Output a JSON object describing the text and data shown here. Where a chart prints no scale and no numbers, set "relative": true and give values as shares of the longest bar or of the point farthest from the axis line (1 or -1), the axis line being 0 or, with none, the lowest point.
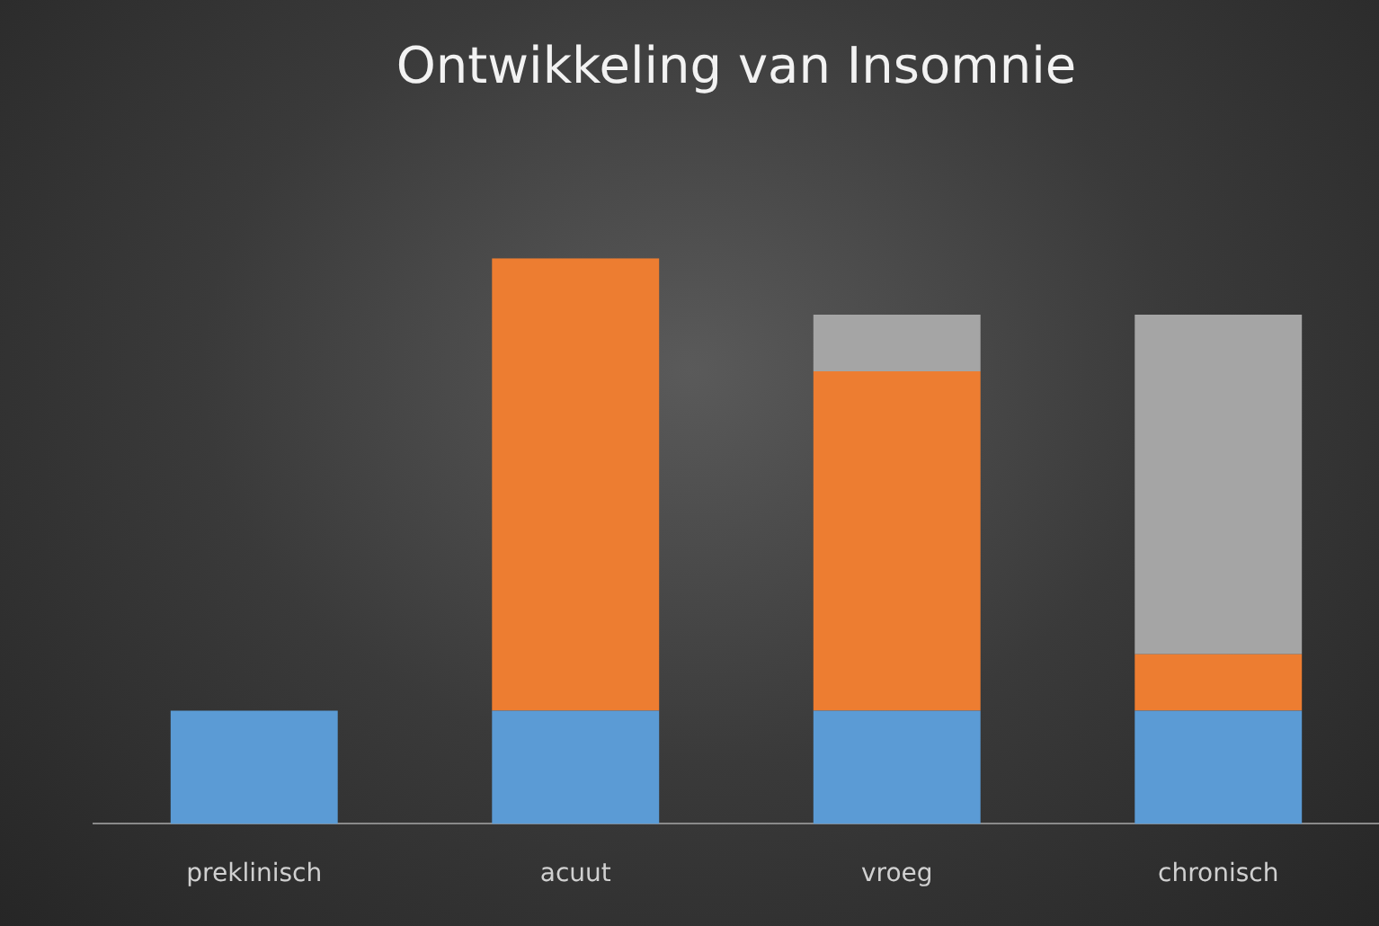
{
  "chart_data": {
    "type": "bar",
    "title": "Ontwikkeling van Insomnie",
    "categories": [
      "preklinisch",
      "acuut",
      "vroeg",
      "chronisch"
    ],
    "stacked": true,
    "relative": true,
    "series": [
      {
        "color": "#5b9bd5",
        "values": [
          0.2,
          0.2,
          0.2,
          0.2
        ]
      },
      {
        "color": "#ed7d31",
        "values": [
          null,
          0.8,
          0.6,
          0.1
        ]
      },
      {
        "color": "#a5a5a5",
        "values": [
          null,
          null,
          0.1,
          0.6
        ]
      }
    ]
  }
}
